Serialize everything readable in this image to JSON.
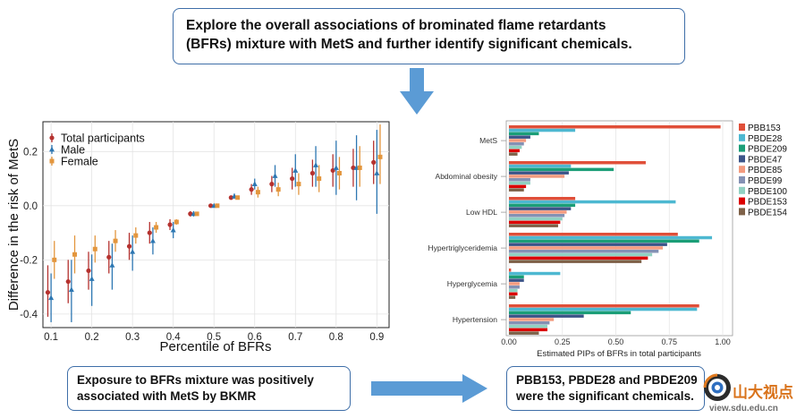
{
  "top_box": {
    "line1": "Explore the overall associations of brominated flame retardants",
    "line2": "(BFRs) mixture with MetS and further identify significant chemicals."
  },
  "bottom_left_box": {
    "line1": "Exposure to BFRs mixture was positively",
    "line2": "associated with MetS by BKMR"
  },
  "bottom_right_box": {
    "line1": "PBB153, PBDE28 and PBDE209",
    "line2": "were the significant chemicals."
  },
  "watermark": {
    "brand": "山大视点",
    "url": "view.sdu.edu.cn"
  },
  "colors": {
    "box_border": "#3e6ea8",
    "arrow": "#5b9bd5"
  },
  "chart_data": [
    {
      "type": "scatter",
      "title": "",
      "xlabel": "Percentile of BFRs",
      "ylabel": "Difference in the risk of MetS",
      "xlim": [
        0.08,
        0.93
      ],
      "ylim": [
        -0.45,
        0.31
      ],
      "xticks": [
        "0.1",
        "0.2",
        "0.3",
        "0.4",
        "0.5",
        "0.6",
        "0.7",
        "0.8",
        "0.9"
      ],
      "yticks": [
        "-0.4",
        "-0.2",
        "0.0",
        "0.2"
      ],
      "grid": true,
      "legend_position": "top-left",
      "x": [
        0.1,
        0.15,
        0.2,
        0.25,
        0.3,
        0.35,
        0.4,
        0.45,
        0.5,
        0.55,
        0.6,
        0.65,
        0.7,
        0.75,
        0.8,
        0.85,
        0.9
      ],
      "series": [
        {
          "name": "Total participants",
          "color": "#b5322f",
          "marker": "circle",
          "y": [
            -0.32,
            -0.28,
            -0.24,
            -0.19,
            -0.15,
            -0.1,
            -0.07,
            -0.03,
            0.0,
            0.03,
            0.06,
            0.08,
            0.1,
            0.12,
            0.13,
            0.14,
            0.16
          ],
          "lower": [
            -0.41,
            -0.36,
            -0.31,
            -0.25,
            -0.2,
            -0.14,
            -0.09,
            -0.04,
            0.0,
            0.025,
            0.04,
            0.05,
            0.06,
            0.07,
            0.07,
            0.07,
            0.08
          ],
          "upper": [
            -0.22,
            -0.2,
            -0.17,
            -0.13,
            -0.1,
            -0.06,
            -0.05,
            -0.02,
            0.0,
            0.035,
            0.08,
            0.11,
            0.14,
            0.17,
            0.19,
            0.21,
            0.24
          ]
        },
        {
          "name": "Male",
          "color": "#2d77b2",
          "marker": "triangle",
          "y": [
            -0.34,
            -0.31,
            -0.27,
            -0.22,
            -0.17,
            -0.13,
            -0.09,
            -0.03,
            0.0,
            0.035,
            0.08,
            0.11,
            0.13,
            0.15,
            0.14,
            0.14,
            0.12
          ],
          "lower": [
            -0.43,
            -0.43,
            -0.37,
            -0.31,
            -0.24,
            -0.18,
            -0.12,
            -0.04,
            0.0,
            0.025,
            0.06,
            0.07,
            0.07,
            0.07,
            0.04,
            0.02,
            -0.03
          ],
          "upper": [
            -0.25,
            -0.2,
            -0.18,
            -0.14,
            -0.11,
            -0.08,
            -0.06,
            -0.02,
            0.005,
            0.045,
            0.1,
            0.15,
            0.19,
            0.22,
            0.24,
            0.26,
            0.28
          ]
        },
        {
          "name": "Female",
          "color": "#e3963e",
          "marker": "square",
          "y": [
            -0.2,
            -0.18,
            -0.16,
            -0.13,
            -0.11,
            -0.08,
            -0.06,
            -0.03,
            0.0,
            0.03,
            0.05,
            0.06,
            0.08,
            0.1,
            0.12,
            0.14,
            0.18
          ],
          "lower": [
            -0.27,
            -0.25,
            -0.21,
            -0.17,
            -0.14,
            -0.1,
            -0.07,
            -0.035,
            -0.005,
            0.025,
            0.03,
            0.035,
            0.04,
            0.05,
            0.06,
            0.07,
            0.08
          ],
          "upper": [
            -0.13,
            -0.11,
            -0.11,
            -0.09,
            -0.08,
            -0.06,
            -0.05,
            -0.025,
            0.005,
            0.035,
            0.07,
            0.085,
            0.12,
            0.15,
            0.18,
            0.22,
            0.3
          ]
        }
      ]
    },
    {
      "type": "bar",
      "orientation": "horizontal",
      "title": "",
      "xlabel": "Estimated PIPs of BFRs in total participants",
      "ylabel": "",
      "xlim": [
        0,
        1.0
      ],
      "xticks": [
        "0.00",
        "0.25",
        "0.50",
        "0.75",
        "1.00"
      ],
      "grid": true,
      "legend_position": "right",
      "categories": [
        "MetS",
        "Abdominal obesity",
        "Low HDL",
        "Hypertriglyceridemia",
        "Hyperglycemia",
        "Hypertension"
      ],
      "series": [
        {
          "name": "PBB153",
          "color": "#e04f39",
          "values": [
            0.99,
            0.64,
            0.31,
            0.79,
            0.01,
            0.89
          ]
        },
        {
          "name": "PBDE28",
          "color": "#4db8d1",
          "values": [
            0.31,
            0.29,
            0.78,
            0.95,
            0.24,
            0.88
          ]
        },
        {
          "name": "PBDE209",
          "color": "#1b9e77",
          "values": [
            0.14,
            0.49,
            0.31,
            0.89,
            0.07,
            0.57
          ]
        },
        {
          "name": "PBDE47",
          "color": "#3c5488",
          "values": [
            0.1,
            0.28,
            0.29,
            0.74,
            0.07,
            0.35
          ]
        },
        {
          "name": "PBDE85",
          "color": "#f39b7f",
          "values": [
            0.08,
            0.26,
            0.27,
            0.72,
            0.05,
            0.21
          ]
        },
        {
          "name": "PBDE99",
          "color": "#8491b4",
          "values": [
            0.07,
            0.1,
            0.26,
            0.7,
            0.05,
            0.19
          ]
        },
        {
          "name": "PBDE100",
          "color": "#91d1c2",
          "values": [
            0.06,
            0.1,
            0.25,
            0.67,
            0.04,
            0.18
          ]
        },
        {
          "name": "PBDE153",
          "color": "#dc0000",
          "values": [
            0.05,
            0.08,
            0.24,
            0.65,
            0.04,
            0.18
          ]
        },
        {
          "name": "PBDE154",
          "color": "#7e6148",
          "values": [
            0.04,
            0.07,
            0.23,
            0.62,
            0.03,
            0.14
          ]
        }
      ]
    }
  ]
}
